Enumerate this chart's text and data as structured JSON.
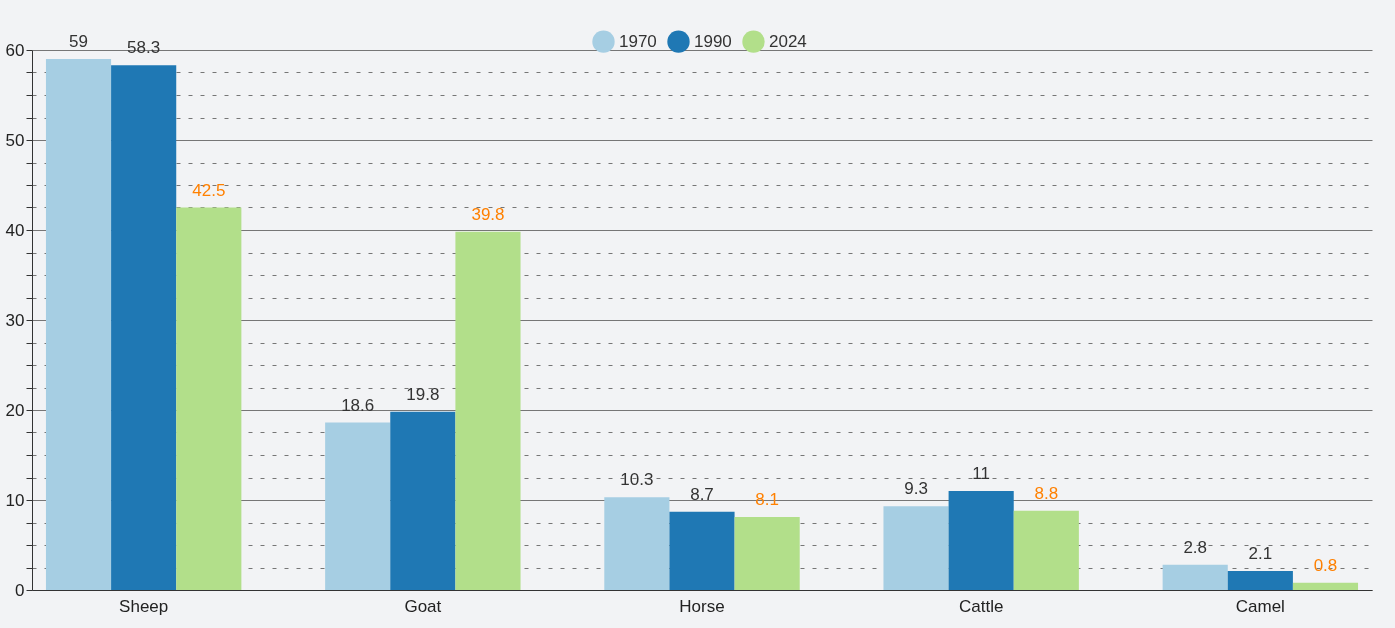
{
  "chart_data": {
    "type": "bar",
    "categories": [
      "Sheep",
      "Goat",
      "Horse",
      "Cattle",
      "Camel"
    ],
    "series": [
      {
        "name": "1970",
        "color": "#a6cee3",
        "values": [
          59,
          18.6,
          10.3,
          9.3,
          2.8
        ]
      },
      {
        "name": "1990",
        "color": "#1f78b4",
        "values": [
          58.3,
          19.8,
          8.7,
          11,
          2.1
        ]
      },
      {
        "name": "2024",
        "color": "#b2df8a",
        "values": [
          42.5,
          39.8,
          8.1,
          8.8,
          0.8
        ]
      }
    ],
    "ylim": [
      0,
      60
    ],
    "yticks": [
      0,
      {
        "value": 2.5,
        "label": null
      },
      {
        "value": 5,
        "label": null
      },
      {
        "value": 7.5,
        "label": null
      },
      10,
      {
        "value": 12.5,
        "label": null
      },
      {
        "value": 15,
        "label": null
      },
      {
        "value": 17.5,
        "label": null
      },
      20,
      {
        "value": 22.5,
        "label": null
      },
      {
        "value": 25,
        "label": null
      },
      {
        "value": 27.5,
        "label": null
      },
      30,
      {
        "value": 32.5,
        "label": null
      },
      {
        "value": 35,
        "label": null
      },
      {
        "value": 37.5,
        "label": null
      },
      40,
      {
        "value": 42.5,
        "label": null
      },
      {
        "value": 45,
        "label": null
      },
      {
        "value": 47.5,
        "label": null
      },
      50,
      {
        "value": 52.5,
        "label": null
      },
      {
        "value": 55,
        "label": null
      },
      {
        "value": 57.5,
        "label": null
      },
      60
    ],
    "grid": "y",
    "legend": "top",
    "data_labels": true
  }
}
